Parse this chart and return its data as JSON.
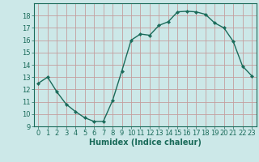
{
  "x": [
    0,
    1,
    2,
    3,
    4,
    5,
    6,
    7,
    8,
    9,
    10,
    11,
    12,
    13,
    14,
    15,
    16,
    17,
    18,
    19,
    20,
    21,
    22,
    23
  ],
  "y": [
    12.5,
    13.0,
    11.8,
    10.8,
    10.2,
    9.7,
    9.4,
    9.4,
    11.1,
    13.5,
    16.0,
    16.5,
    16.4,
    17.2,
    17.5,
    18.3,
    18.35,
    18.3,
    18.1,
    17.4,
    17.0,
    15.9,
    13.9,
    13.1
  ],
  "line_color": "#1a6b5a",
  "marker": "D",
  "markersize": 2.2,
  "linewidth": 1.0,
  "bg_color": "#cce8e8",
  "grid_color": "#aacccc",
  "grid_major_color": "#cc9999",
  "xlabel": "Humidex (Indice chaleur)",
  "ylim": [
    9,
    19
  ],
  "xlim": [
    -0.5,
    23.5
  ],
  "yticks": [
    9,
    10,
    11,
    12,
    13,
    14,
    15,
    16,
    17,
    18
  ],
  "xticks": [
    0,
    1,
    2,
    3,
    4,
    5,
    6,
    7,
    8,
    9,
    10,
    11,
    12,
    13,
    14,
    15,
    16,
    17,
    18,
    19,
    20,
    21,
    22,
    23
  ],
  "tick_color": "#1a6b5a",
  "xlabel_fontsize": 7.0,
  "tick_fontsize": 6.0
}
